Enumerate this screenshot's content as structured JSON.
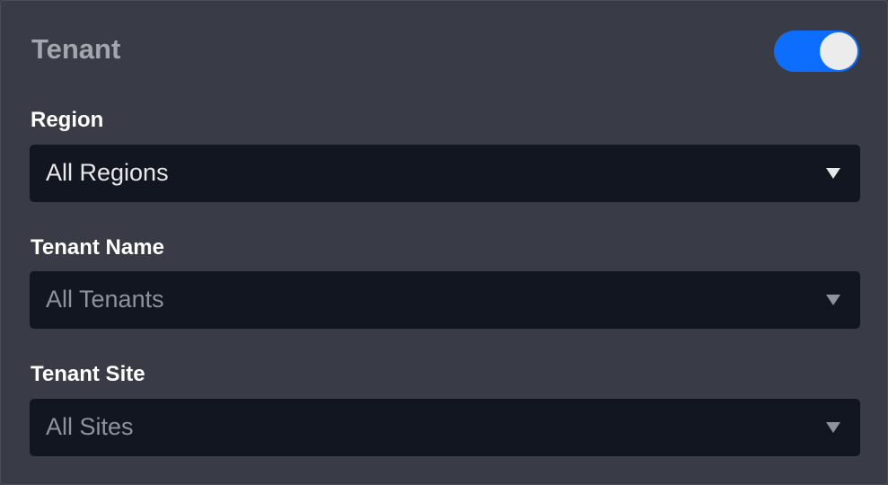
{
  "panel": {
    "title": "Tenant",
    "toggle": {
      "on": true,
      "color": "#0d6efd"
    }
  },
  "fields": [
    {
      "label": "Region",
      "value": "All Regions",
      "icon": "caret-down-icon"
    },
    {
      "label": "Tenant Name",
      "value": "All Tenants",
      "icon": "caret-down-icon"
    },
    {
      "label": "Tenant Site",
      "value": "All Sites",
      "icon": "caret-down-icon"
    }
  ]
}
